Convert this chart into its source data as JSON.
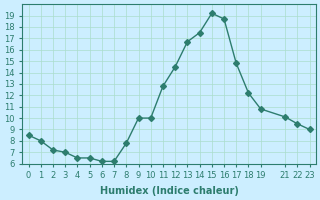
{
  "x": [
    0,
    1,
    2,
    3,
    4,
    5,
    6,
    7,
    8,
    9,
    10,
    11,
    12,
    13,
    14,
    15,
    16,
    17,
    18,
    19,
    21,
    22,
    23
  ],
  "y": [
    8.5,
    8.0,
    7.2,
    7.0,
    6.5,
    6.5,
    6.2,
    6.2,
    7.8,
    10.0,
    10.0,
    12.8,
    14.5,
    16.7,
    17.5,
    19.2,
    18.7,
    14.8,
    12.2,
    10.8,
    10.1,
    9.5,
    9.0
  ],
  "line_color": "#2d7d6e",
  "marker": "D",
  "marker_size": 3,
  "bg_color": "#cceeff",
  "grid_color": "#aaddcc",
  "xlabel": "Humidex (Indice chaleur)",
  "ylim": [
    6,
    20
  ],
  "xlim": [
    -0.5,
    23.5
  ],
  "yticks": [
    6,
    7,
    8,
    9,
    10,
    11,
    12,
    13,
    14,
    15,
    16,
    17,
    18,
    19
  ],
  "xticks": [
    0,
    1,
    2,
    3,
    4,
    5,
    6,
    7,
    8,
    9,
    10,
    11,
    12,
    13,
    14,
    15,
    16,
    17,
    18,
    19,
    21,
    22,
    23
  ],
  "xtick_labels": [
    "0",
    "1",
    "2",
    "3",
    "4",
    "5",
    "6",
    "7",
    "8",
    "9",
    "10",
    "11",
    "12",
    "13",
    "14",
    "15",
    "16",
    "17",
    "18",
    "19",
    "21",
    "22",
    "23"
  ],
  "tick_color": "#2d7d6e",
  "label_fontsize": 7,
  "tick_fontsize": 6
}
